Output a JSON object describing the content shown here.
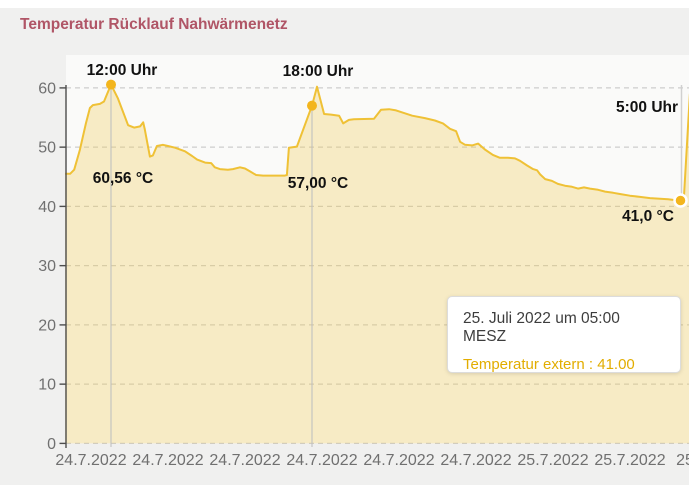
{
  "page": {
    "title": "Temperatur Rücklauf Nahwärmenetz"
  },
  "tooltip": {
    "date_line": "25. Juli 2022 um 05:00 MESZ",
    "value_line": "Temperatur extern : 41.00"
  },
  "chart_data": {
    "type": "area",
    "title": "Temperatur Rücklauf Nahwärmenetz",
    "series_name": "Temperatur extern",
    "x_axis": {
      "labels": [
        "24.7.2022",
        "24.7.2022",
        "24.7.2022",
        "24.7.2022",
        "24.7.2022",
        "24.7.2022",
        "25.7.2022",
        "25.7.2022",
        "25"
      ],
      "grid": false
    },
    "y_axis": {
      "ticks": [
        0,
        10,
        20,
        30,
        40,
        50,
        60
      ],
      "range": [
        0,
        62
      ],
      "grid": "dashed"
    },
    "points_time_hours_vs_celsius": [
      [
        10.63,
        45.5
      ],
      [
        10.78,
        45.5
      ],
      [
        10.9,
        46.2
      ],
      [
        11.07,
        49.5
      ],
      [
        11.25,
        54.0
      ],
      [
        11.37,
        56.6
      ],
      [
        11.46,
        57.1
      ],
      [
        11.67,
        57.3
      ],
      [
        11.79,
        57.7
      ],
      [
        12.0,
        60.56
      ],
      [
        12.21,
        58.2
      ],
      [
        12.51,
        53.7
      ],
      [
        12.69,
        53.3
      ],
      [
        12.87,
        53.5
      ],
      [
        12.96,
        54.2
      ],
      [
        13.01,
        53.0
      ],
      [
        13.16,
        48.4
      ],
      [
        13.25,
        48.6
      ],
      [
        13.37,
        50.2
      ],
      [
        13.55,
        50.4
      ],
      [
        13.7,
        50.2
      ],
      [
        13.91,
        49.9
      ],
      [
        14.21,
        49.3
      ],
      [
        14.42,
        48.5
      ],
      [
        14.57,
        47.9
      ],
      [
        14.81,
        47.4
      ],
      [
        14.99,
        47.3
      ],
      [
        15.1,
        46.6
      ],
      [
        15.25,
        46.3
      ],
      [
        15.49,
        46.2
      ],
      [
        15.64,
        46.3
      ],
      [
        15.85,
        46.6
      ],
      [
        16.0,
        46.4
      ],
      [
        16.15,
        45.9
      ],
      [
        16.33,
        45.3
      ],
      [
        16.54,
        45.2
      ],
      [
        17.19,
        45.2
      ],
      [
        17.25,
        45.3
      ],
      [
        17.31,
        49.9
      ],
      [
        17.55,
        50.1
      ],
      [
        18.0,
        57.0
      ],
      [
        18.15,
        60.2
      ],
      [
        18.36,
        55.6
      ],
      [
        18.57,
        55.5
      ],
      [
        18.81,
        55.3
      ],
      [
        18.93,
        54.0
      ],
      [
        19.1,
        54.6
      ],
      [
        19.25,
        54.7
      ],
      [
        19.85,
        54.8
      ],
      [
        20.06,
        56.3
      ],
      [
        20.3,
        56.4
      ],
      [
        20.51,
        56.2
      ],
      [
        20.99,
        55.3
      ],
      [
        21.37,
        54.9
      ],
      [
        21.67,
        54.5
      ],
      [
        21.91,
        54.0
      ],
      [
        22.12,
        53.1
      ],
      [
        22.3,
        52.7
      ],
      [
        22.42,
        50.9
      ],
      [
        22.57,
        50.4
      ],
      [
        22.78,
        50.3
      ],
      [
        22.96,
        50.6
      ],
      [
        23.16,
        49.6
      ],
      [
        23.4,
        48.7
      ],
      [
        23.61,
        48.2
      ],
      [
        23.85,
        48.2
      ],
      [
        24.06,
        48.1
      ],
      [
        24.21,
        47.7
      ],
      [
        24.42,
        46.9
      ],
      [
        24.6,
        46.3
      ],
      [
        24.72,
        46.1
      ],
      [
        24.81,
        45.4
      ],
      [
        24.96,
        44.6
      ],
      [
        25.16,
        44.3
      ],
      [
        25.34,
        43.8
      ],
      [
        25.55,
        43.5
      ],
      [
        25.76,
        43.3
      ],
      [
        25.94,
        43.0
      ],
      [
        26.12,
        43.2
      ],
      [
        26.3,
        43.0
      ],
      [
        26.54,
        42.8
      ],
      [
        26.75,
        42.5
      ],
      [
        26.99,
        42.3
      ],
      [
        27.19,
        42.1
      ],
      [
        27.49,
        41.8
      ],
      [
        27.79,
        41.6
      ],
      [
        28.09,
        41.4
      ],
      [
        28.39,
        41.3
      ],
      [
        28.63,
        41.2
      ],
      [
        28.78,
        41.1
      ],
      [
        29.0,
        41.0
      ],
      [
        29.1,
        41.5
      ],
      [
        29.28,
        59.0
      ]
    ],
    "annotations": [
      {
        "time_label": "12:00 Uhr",
        "value_label": "60,56 °C",
        "t": 12.0,
        "value": 60.56
      },
      {
        "time_label": "18:00 Uhr",
        "value_label": "57,00 °C",
        "t": 18.0,
        "value": 57.0
      },
      {
        "time_label": "5:00 Uhr",
        "value_label": "41,0 °C",
        "t": 29.0,
        "value": 41.0
      }
    ],
    "colors": {
      "title": "#b05566",
      "line": "#efc136",
      "fill": "rgba(242,201,76,0.30)",
      "marker": "#f3b51d",
      "grid": "#cdcdcd",
      "axis": "#4d4d4d",
      "axis_label": "#707070",
      "annotation_text": "#111111",
      "annotation_line": "#c0c0c0",
      "plot_bg": "#fafaf9",
      "tooltip_value": "#e2ad00"
    }
  }
}
